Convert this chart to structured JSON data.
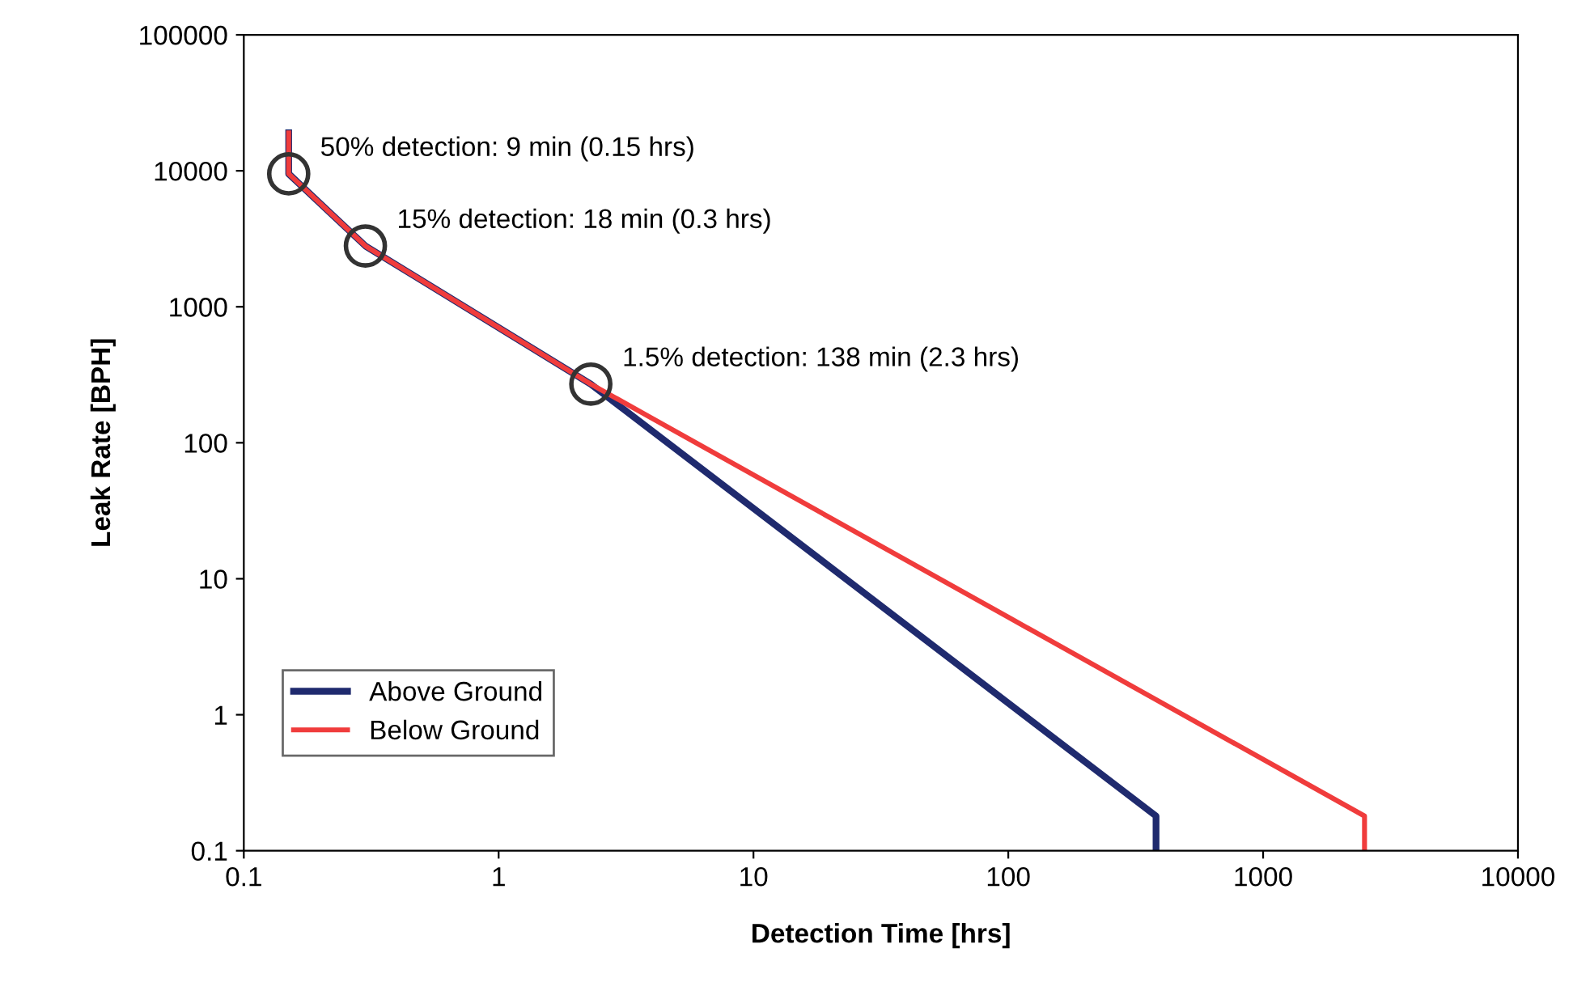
{
  "chart_data": {
    "type": "line",
    "xlabel": "Detection Time [hrs]",
    "ylabel": "Leak Rate [BPH]",
    "log": "xy",
    "grid": false,
    "legend": "bottom left",
    "xlim": [
      0.1,
      10000
    ],
    "ylim": [
      0.1,
      100000
    ],
    "xticks": [
      0.1,
      1,
      10,
      100,
      1000,
      10000
    ],
    "yticks": [
      0.1,
      1,
      10,
      100,
      1000,
      10000,
      100000
    ],
    "series": [
      {
        "name": "Above Ground",
        "color": "#1f2a6e",
        "x": [
          0.15,
          0.15,
          0.3,
          2.3,
          380,
          380
        ],
        "values": [
          19000,
          9500,
          2800,
          270,
          0.18,
          0.1
        ]
      },
      {
        "name": "Below Ground",
        "color": "#f03c3c",
        "x": [
          0.15,
          0.15,
          0.3,
          2.3,
          2500,
          2500
        ],
        "values": [
          19000,
          9500,
          2800,
          270,
          0.18,
          0.1
        ]
      },
      {
        "type": "scatter",
        "marker": "circle",
        "color": "#333333",
        "x": [
          0.15,
          0.3,
          2.3
        ],
        "values": [
          9500,
          2800,
          270
        ]
      }
    ],
    "annotations": [
      {
        "text": "50% detection: 9 min (0.15 hrs)",
        "x": 0.15,
        "y": 9500
      },
      {
        "text": "15% detection: 18 min (0.3 hrs)",
        "x": 0.3,
        "y": 2800
      },
      {
        "text": "1.5% detection: 138 min (2.3 hrs)",
        "x": 2.3,
        "y": 270
      }
    ]
  }
}
